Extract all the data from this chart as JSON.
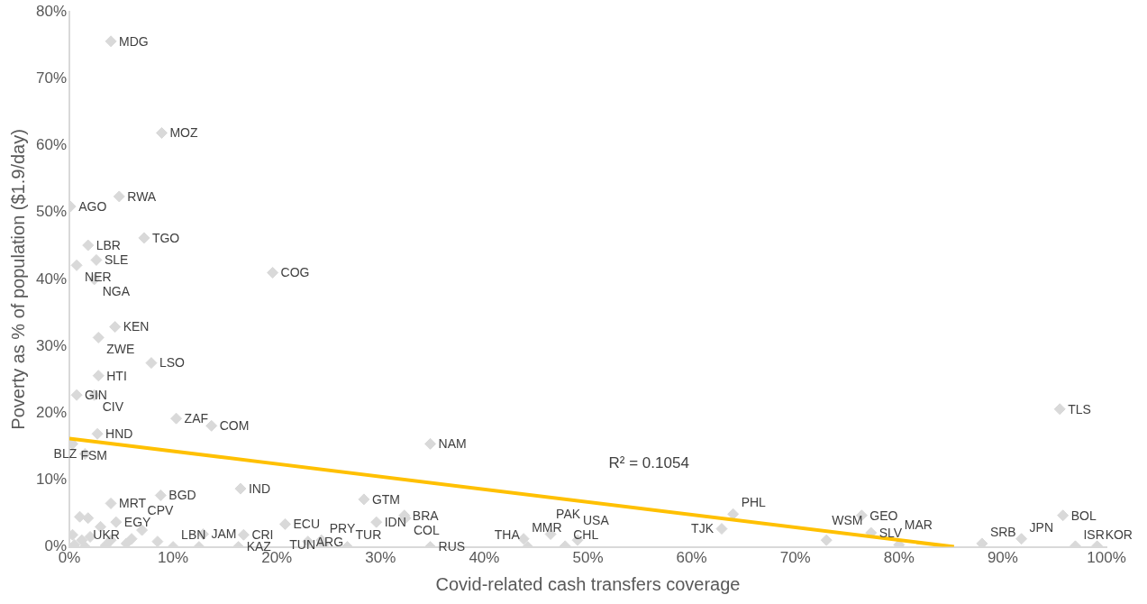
{
  "chart_data": {
    "type": "scatter",
    "xlabel": "Covid-related cash transfers coverage",
    "ylabel": "Poverty as % of population ($1.9/day)",
    "xlim": [
      0,
      100
    ],
    "xticks": [
      {
        "value": 0,
        "label": "0%"
      },
      {
        "value": 10,
        "label": "10%"
      },
      {
        "value": 20,
        "label": "20%"
      },
      {
        "value": 30,
        "label": "30%"
      },
      {
        "value": 40,
        "label": "40%"
      },
      {
        "value": 50,
        "label": "50%"
      },
      {
        "value": 60,
        "label": "60%"
      },
      {
        "value": 70,
        "label": "70%"
      },
      {
        "value": 80,
        "label": "80%"
      },
      {
        "value": 90,
        "label": "90%"
      },
      {
        "value": 100,
        "label": "100%"
      }
    ],
    "ylim": [
      0,
      80
    ],
    "yticks": [
      {
        "value": 0,
        "label": "0%"
      },
      {
        "value": 10,
        "label": "10%"
      },
      {
        "value": 20,
        "label": "20%"
      },
      {
        "value": 30,
        "label": "30%"
      },
      {
        "value": 40,
        "label": "40%"
      },
      {
        "value": 50,
        "label": "50%"
      },
      {
        "value": 60,
        "label": "60%"
      },
      {
        "value": 70,
        "label": "70%"
      },
      {
        "value": 80,
        "label": "80%"
      }
    ],
    "grid": false,
    "legend": false,
    "marker": "diamond",
    "annotations": [
      "R² = 0.1054"
    ],
    "series": [
      {
        "color": "#d9d9d9",
        "x": [
          4.0,
          8.9,
          4.8,
          0.1,
          7.2,
          1.8,
          2.6,
          0.7,
          2.4,
          19.6,
          4.4,
          2.8,
          7.9,
          2.8,
          0.7,
          2.4,
          10.3,
          13.7,
          2.7,
          0.3,
          1.5,
          34.8,
          95.5,
          95.8,
          76.4,
          64.0,
          62.9,
          73.0,
          77.3,
          80.0,
          88.0,
          91.8,
          97.0,
          99.1,
          16.5,
          8.8,
          4.0,
          28.4,
          20.8,
          29.6,
          32.3,
          32.4,
          12.9,
          16.8,
          16.3,
          23.0,
          24.3,
          24.5,
          26.8,
          34.8,
          43.8,
          46.4,
          44.2,
          47.8,
          49.0,
          4.5,
          7.0,
          10.0,
          1.5,
          0.3,
          1.2,
          2.0,
          0.5,
          1.0,
          1.8,
          3.0,
          4.0,
          5.5,
          6.0,
          8.5,
          3.5,
          12.5
        ],
        "values": [
          75.6,
          61.9,
          52.4,
          50.9,
          46.2,
          45.1,
          42.9,
          42.1,
          40.0,
          41.0,
          32.9,
          31.3,
          27.5,
          25.6,
          22.7,
          22.7,
          19.2,
          18.1,
          16.9,
          15.4,
          13.9,
          15.4,
          20.6,
          4.7,
          4.7,
          4.9,
          2.7,
          1.0,
          2.1,
          0.3,
          0.5,
          1.2,
          0.1,
          0.1,
          8.7,
          7.7,
          6.5,
          7.1,
          3.4,
          3.7,
          4.7,
          4.3,
          1.9,
          1.8,
          0.0,
          0.8,
          1.0,
          0.3,
          0.0,
          0.0,
          1.2,
          1.9,
          0.0,
          0.1,
          1.0,
          3.7,
          2.5,
          0.0,
          0.0,
          1.8,
          1.0,
          1.5,
          0.3,
          4.5,
          4.3,
          3.0,
          1.0,
          0.5,
          1.2,
          0.8,
          0.2,
          0.0
        ],
        "value_labels": [
          "MDG",
          "MOZ",
          "RWA",
          "AGO",
          "TGO",
          "LBR",
          "SLE",
          "NER",
          "NGA",
          "COG",
          "KEN",
          "ZWE",
          "LSO",
          "HTI",
          "GIN",
          "CIV",
          "ZAF",
          "COM",
          "HND",
          "FSM",
          "BLZ",
          "NAM",
          "TLS",
          "BOL",
          "GEO",
          "PHL",
          "TJK",
          "WSM",
          "SLV",
          "MAR",
          "SRB",
          "JPN",
          "ISR",
          "KOR",
          "IND",
          "BGD",
          "MRT",
          "GTM",
          "ECU",
          "IDN",
          "BRA",
          "COL",
          "JAM",
          "CRI",
          "KAZ",
          "ARG",
          "PRY",
          "TUN",
          "TUR",
          "RUS",
          "MMR",
          "PAK",
          "THA",
          "CHL",
          "USA",
          "EGY",
          "CPV",
          "LBN",
          "UKR",
          null,
          null,
          null,
          null,
          null,
          null,
          null,
          null,
          null,
          null,
          null,
          null,
          null
        ]
      },
      {
        "type": "line",
        "marker": "none",
        "color": "#ffc000",
        "x": [
          0,
          85.3
        ],
        "values": [
          16.2,
          0
        ]
      }
    ]
  }
}
